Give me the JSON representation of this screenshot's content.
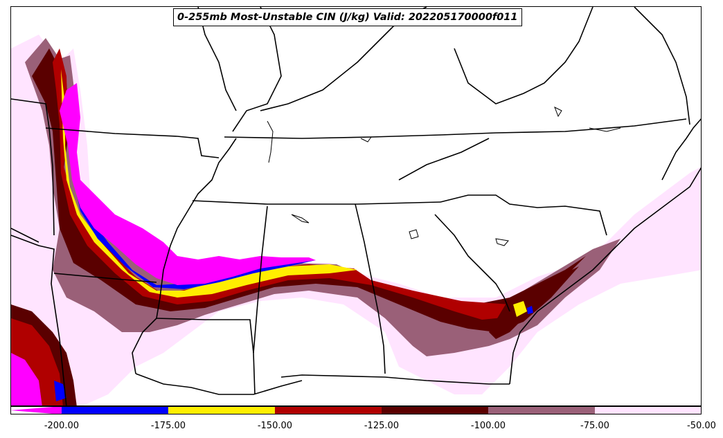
{
  "title": "0-255mb Most-Unstable CIN (J/kg) Valid: 202205170000f011",
  "colorbar": {
    "ticks": [
      "-200.00",
      "-175.00",
      "-150.00",
      "-125.00",
      "-100.00",
      "-75.00",
      "-50.00"
    ],
    "bins": [
      {
        "from": -212,
        "to": -200,
        "color": "#ff00ff"
      },
      {
        "from": -200,
        "to": -175,
        "color": "#0000ff"
      },
      {
        "from": -175,
        "to": -150,
        "color": "#ffee00"
      },
      {
        "from": -150,
        "to": -125,
        "color": "#b00000"
      },
      {
        "from": -125,
        "to": -100,
        "color": "#5a0000"
      },
      {
        "from": -100,
        "to": -75,
        "color": "#9a6078"
      },
      {
        "from": -75,
        "to": -50,
        "color": "#ffe4ff"
      }
    ]
  },
  "colors": {
    "magenta": "#ff00ff",
    "blue": "#0000ff",
    "yellow": "#ffee00",
    "red": "#b00000",
    "darkred": "#5a0000",
    "mauve": "#9a6078",
    "pink": "#ffe4ff",
    "border": "#000000"
  }
}
